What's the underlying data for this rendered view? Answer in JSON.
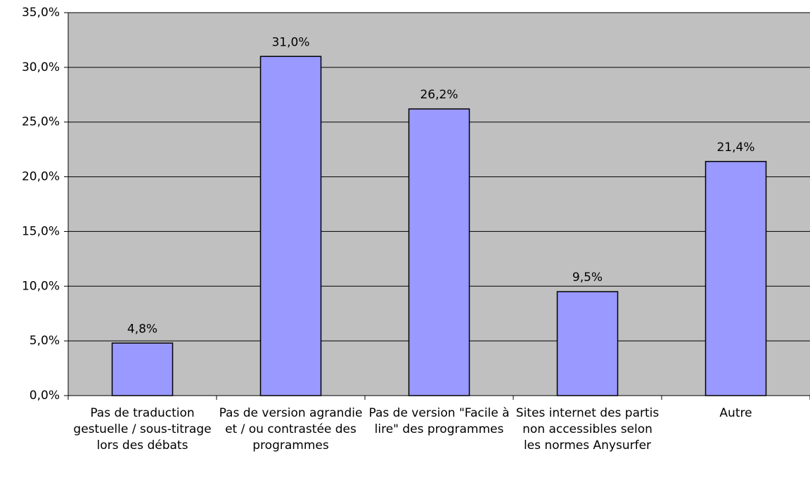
{
  "chart_data": {
    "type": "bar",
    "categories": [
      "Pas de traduction gestuelle / sous-titrage lors des débats",
      "Pas de version agrandie et / ou contrastée des programmes",
      "Pas de version \"Facile à lire\" des programmes",
      "Sites internet des partis non accessibles selon les normes Anysurfer",
      "Autre"
    ],
    "values": [
      4.8,
      31.0,
      26.2,
      9.5,
      21.4
    ],
    "value_labels": [
      "4,8%",
      "31,0%",
      "26,2%",
      "9,5%",
      "21,4%"
    ],
    "color": "#9999ff",
    "ylim": [
      0,
      35
    ],
    "yticks": [
      {
        "value": 0,
        "label": "0,0%"
      },
      {
        "value": 5,
        "label": "5,0%"
      },
      {
        "value": 10,
        "label": "10,0%"
      },
      {
        "value": 15,
        "label": "15,0%"
      },
      {
        "value": 20,
        "label": "20,0%"
      },
      {
        "value": 25,
        "label": "25,0%"
      },
      {
        "value": 30,
        "label": "30,0%"
      },
      {
        "value": 35,
        "label": "35,0%"
      }
    ],
    "grid": true
  }
}
